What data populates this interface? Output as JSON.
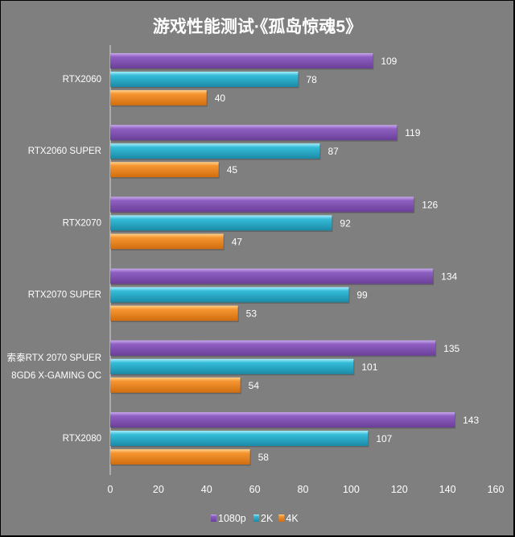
{
  "chart_data": {
    "type": "bar",
    "orientation": "horizontal",
    "title": "游戏性能测试·《孤岛惊魂5》",
    "categories": [
      "RTX2060",
      "RTX2060 SUPER",
      "RTX2070",
      "RTX2070 SUPER",
      "索泰RTX 2070 SPUER\n8GD6 X-GAMING OC",
      "RTX2080"
    ],
    "series": [
      {
        "name": "1080p",
        "color": "#8052b0",
        "values": [
          109,
          119,
          126,
          134,
          135,
          143
        ]
      },
      {
        "name": "2K",
        "color": "#2fb3cf",
        "values": [
          78,
          87,
          92,
          99,
          101,
          107
        ]
      },
      {
        "name": "4K",
        "color": "#f08a25",
        "values": [
          40,
          45,
          47,
          53,
          54,
          58
        ]
      }
    ],
    "xlim": [
      0,
      160
    ],
    "xticks": [
      0,
      20,
      40,
      60,
      80,
      100,
      120,
      140,
      160
    ],
    "xlabel": "",
    "ylabel": "",
    "grid": false,
    "legend": "bottom"
  }
}
